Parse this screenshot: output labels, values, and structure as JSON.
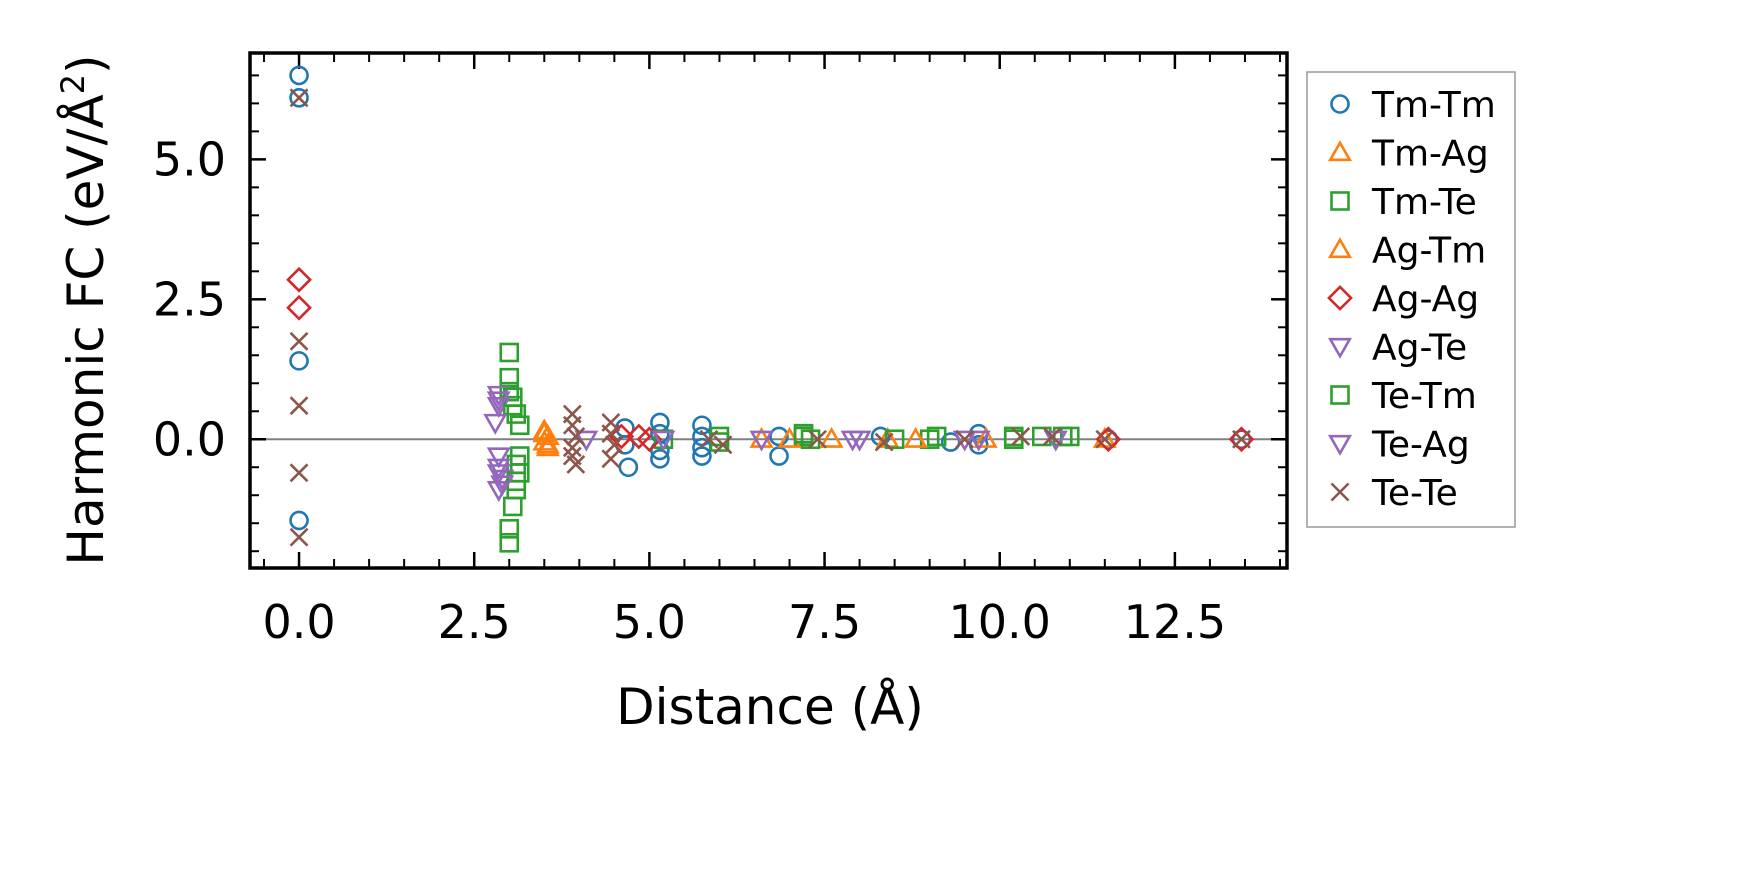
{
  "chart_data": {
    "type": "scatter",
    "xlabel": "Distance (Å)",
    "ylabel_main": "Harmonic FC (eV/Å",
    "ylabel_sup": "2",
    "ylabel_close": ")",
    "xlim": [
      -0.7,
      14.1
    ],
    "ylim": [
      -2.3,
      6.9
    ],
    "xticks": [
      0.0,
      2.5,
      5.0,
      7.5,
      10.0,
      12.5
    ],
    "xtick_labels": [
      "0.0",
      "2.5",
      "5.0",
      "7.5",
      "10.0",
      "12.5"
    ],
    "yticks": [
      0.0,
      2.5,
      5.0
    ],
    "ytick_labels": [
      "0.0",
      "2.5",
      "5.0"
    ],
    "hline_y": 0,
    "legend_position": "outside-right",
    "series": [
      {
        "name": "Tm-Tm",
        "marker": "circle",
        "color": "#1f77b4",
        "points": [
          [
            0,
            6.5
          ],
          [
            0,
            6.1
          ],
          [
            0,
            1.4
          ],
          [
            0,
            -1.45
          ],
          [
            4.65,
            0.2
          ],
          [
            4.65,
            -0.1
          ],
          [
            4.7,
            -0.5
          ],
          [
            5.15,
            0.3
          ],
          [
            5.15,
            0.1
          ],
          [
            5.15,
            -0.2
          ],
          [
            5.15,
            -0.35
          ],
          [
            5.75,
            0.25
          ],
          [
            5.75,
            0.05
          ],
          [
            5.75,
            -0.15
          ],
          [
            5.75,
            -0.3
          ],
          [
            6.85,
            0.05
          ],
          [
            6.85,
            -0.3
          ],
          [
            8.3,
            0.05
          ],
          [
            9.3,
            -0.05
          ],
          [
            9.7,
            0.1
          ],
          [
            9.7,
            -0.1
          ],
          [
            11.55,
            0
          ],
          [
            13.45,
            0
          ]
        ]
      },
      {
        "name": "Tm-Ag",
        "marker": "triangle-up",
        "color": "#ff7f0e",
        "points": [
          [
            3.5,
            0.15
          ],
          [
            3.55,
            0.05
          ],
          [
            3.5,
            -0.05
          ],
          [
            3.55,
            -0.15
          ],
          [
            6.6,
            0
          ],
          [
            7.6,
            0
          ],
          [
            8.4,
            0
          ],
          [
            9.8,
            0
          ],
          [
            11.5,
            0
          ]
        ]
      },
      {
        "name": "Tm-Te",
        "marker": "square",
        "color": "#2ca02c",
        "points": [
          [
            3.0,
            1.55
          ],
          [
            3.0,
            1.1
          ],
          [
            3.0,
            0.85
          ],
          [
            3.05,
            0.6
          ],
          [
            3.1,
            0.45
          ],
          [
            3.15,
            0.25
          ],
          [
            3.15,
            -0.3
          ],
          [
            3.1,
            -0.45
          ],
          [
            3.15,
            -0.6
          ],
          [
            3.1,
            -0.9
          ],
          [
            3.05,
            -1.2
          ],
          [
            3.0,
            -1.6
          ],
          [
            3.0,
            -1.85
          ],
          [
            5.2,
            0
          ],
          [
            6.0,
            0.05
          ],
          [
            6.0,
            -0.05
          ],
          [
            7.2,
            0.05
          ],
          [
            7.3,
            0
          ],
          [
            8.5,
            0
          ],
          [
            9.0,
            0
          ],
          [
            10.2,
            0.05
          ],
          [
            10.6,
            0.05
          ],
          [
            10.9,
            0.05
          ],
          [
            11.0,
            0.05
          ]
        ]
      },
      {
        "name": "Ag-Tm",
        "marker": "triangle-up",
        "color": "#ff7f0e",
        "points": [
          [
            3.5,
            0.1
          ],
          [
            3.55,
            -0.1
          ],
          [
            7.0,
            0
          ],
          [
            8.8,
            0
          ]
        ]
      },
      {
        "name": "Ag-Ag",
        "marker": "diamond",
        "color": "#d62728",
        "points": [
          [
            0,
            2.85
          ],
          [
            0,
            2.35
          ],
          [
            4.6,
            0.05
          ],
          [
            4.85,
            0.05
          ],
          [
            5.0,
            0
          ],
          [
            11.55,
            0
          ],
          [
            13.45,
            0
          ]
        ]
      },
      {
        "name": "Ag-Te",
        "marker": "triangle-down",
        "color": "#9467bd",
        "points": [
          [
            2.85,
            0.8
          ],
          [
            2.85,
            0.6
          ],
          [
            2.8,
            0.3
          ],
          [
            2.85,
            -0.3
          ],
          [
            2.85,
            -0.5
          ],
          [
            2.9,
            -0.7
          ],
          [
            2.85,
            -0.9
          ],
          [
            4.1,
            0
          ],
          [
            5.2,
            0
          ],
          [
            6.6,
            0
          ],
          [
            8.0,
            0
          ],
          [
            9.5,
            0
          ],
          [
            10.8,
            0
          ]
        ]
      },
      {
        "name": "Te-Tm",
        "marker": "square",
        "color": "#2ca02c",
        "points": [
          [
            3.05,
            0.75
          ],
          [
            3.1,
            -0.75
          ],
          [
            7.2,
            0.1
          ],
          [
            9.1,
            0.05
          ],
          [
            10.2,
            0
          ]
        ]
      },
      {
        "name": "Te-Ag",
        "marker": "triangle-down",
        "color": "#9467bd",
        "points": [
          [
            2.85,
            0.7
          ],
          [
            2.85,
            -0.6
          ],
          [
            2.9,
            -0.8
          ],
          [
            7.9,
            0
          ],
          [
            9.7,
            0
          ]
        ]
      },
      {
        "name": "Te-Te",
        "marker": "x",
        "color": "#8c564b",
        "points": [
          [
            0,
            6.1
          ],
          [
            0,
            1.75
          ],
          [
            0,
            0.6
          ],
          [
            0,
            -0.6
          ],
          [
            0,
            -1.75
          ],
          [
            3.9,
            0.45
          ],
          [
            3.9,
            0.25
          ],
          [
            3.95,
            0.05
          ],
          [
            3.9,
            -0.15
          ],
          [
            3.9,
            -0.3
          ],
          [
            3.95,
            -0.45
          ],
          [
            4.45,
            0.3
          ],
          [
            4.45,
            0.1
          ],
          [
            4.5,
            -0.1
          ],
          [
            4.45,
            -0.35
          ],
          [
            5.85,
            0
          ],
          [
            6.05,
            -0.1
          ],
          [
            7.4,
            0
          ],
          [
            8.35,
            -0.05
          ],
          [
            9.5,
            0
          ],
          [
            10.3,
            0.05
          ],
          [
            10.75,
            0.05
          ],
          [
            11.5,
            0
          ],
          [
            13.45,
            0
          ]
        ]
      }
    ]
  }
}
